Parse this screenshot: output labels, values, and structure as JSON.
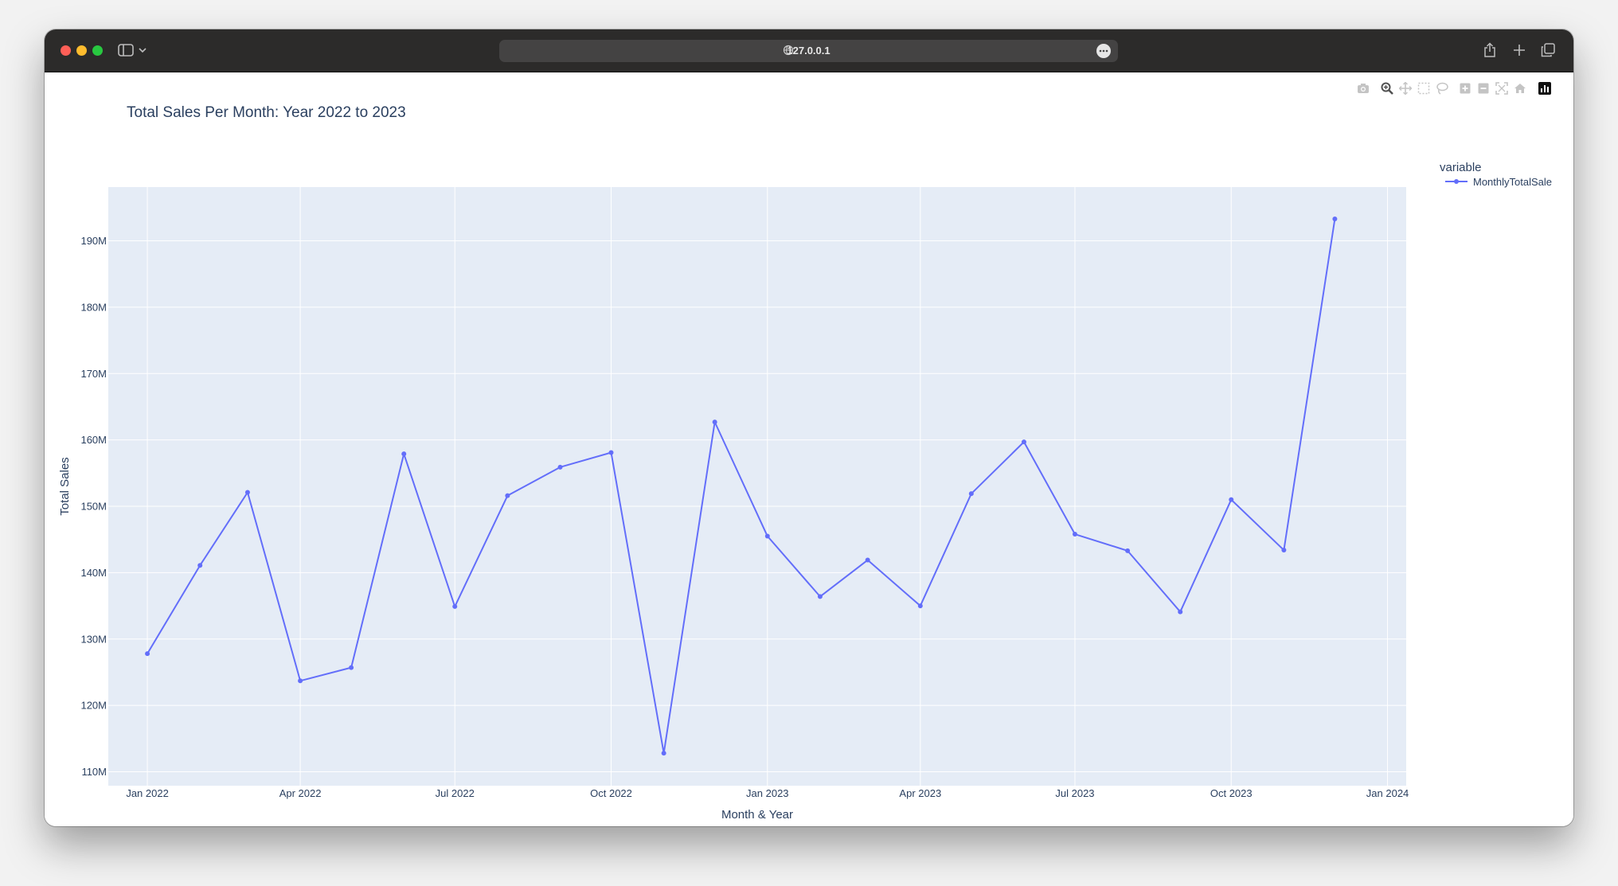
{
  "browser": {
    "url": "127.0.0.1"
  },
  "colors": {
    "titlebar": "#2c2b2a",
    "plot_bg": "#e5ecf6",
    "line": "#636efa",
    "text": "#2a3f5f"
  },
  "modebar": {
    "icons": [
      "camera-icon",
      "zoom-icon",
      "pan-icon",
      "box-select-icon",
      "lasso-select-icon",
      "zoom-in-icon",
      "zoom-out-icon",
      "autoscale-icon",
      "reset-axes-icon",
      "plotly-logo-icon"
    ]
  },
  "legend": {
    "title": "variable",
    "items": [
      {
        "label": "MonthlyTotalSale"
      }
    ]
  },
  "chart_data": {
    "type": "line",
    "title": "Total Sales Per Month: Year 2022 to 2023",
    "xlabel": "Month & Year",
    "ylabel": "Total Sales",
    "x": [
      "2022-01-01",
      "2022-02-01",
      "2022-03-01",
      "2022-04-01",
      "2022-05-01",
      "2022-06-01",
      "2022-07-01",
      "2022-08-01",
      "2022-09-01",
      "2022-10-01",
      "2022-11-01",
      "2022-12-01",
      "2023-01-01",
      "2023-02-01",
      "2023-03-01",
      "2023-04-01",
      "2023-05-01",
      "2023-06-01",
      "2023-07-01",
      "2023-08-01",
      "2023-09-01",
      "2023-10-01",
      "2023-11-01",
      "2023-12-01"
    ],
    "series": [
      {
        "name": "MonthlyTotalSale",
        "values": [
          127.8,
          141.1,
          152.1,
          123.7,
          125.7,
          157.9,
          134.9,
          151.6,
          155.9,
          158.1,
          112.8,
          162.7,
          145.5,
          136.4,
          141.9,
          135.0,
          151.9,
          159.7,
          145.8,
          143.3,
          134.1,
          151.0,
          143.4,
          193.3
        ]
      }
    ],
    "y_unit": "M",
    "x_ticks": [
      {
        "date": "2022-01-01",
        "label": "Jan 2022"
      },
      {
        "date": "2022-04-01",
        "label": "Apr 2022"
      },
      {
        "date": "2022-07-01",
        "label": "Jul 2022"
      },
      {
        "date": "2022-10-01",
        "label": "Oct 2022"
      },
      {
        "date": "2023-01-01",
        "label": "Jan 2023"
      },
      {
        "date": "2023-04-01",
        "label": "Apr 2023"
      },
      {
        "date": "2023-07-01",
        "label": "Jul 2023"
      },
      {
        "date": "2023-10-01",
        "label": "Oct 2023"
      },
      {
        "date": "2024-01-01",
        "label": "Jan 2024"
      }
    ],
    "y_ticks": [
      {
        "value": 110,
        "label": "110M"
      },
      {
        "value": 120,
        "label": "120M"
      },
      {
        "value": 130,
        "label": "130M"
      },
      {
        "value": 140,
        "label": "140M"
      },
      {
        "value": 150,
        "label": "150M"
      },
      {
        "value": 160,
        "label": "160M"
      },
      {
        "value": 170,
        "label": "170M"
      },
      {
        "value": 180,
        "label": "180M"
      },
      {
        "value": 190,
        "label": "190M"
      }
    ],
    "xlim": [
      "2021-12-09",
      "2024-01-12"
    ],
    "ylim": [
      107.9,
      198.1
    ],
    "grid": true,
    "legend_position": "top-right"
  }
}
